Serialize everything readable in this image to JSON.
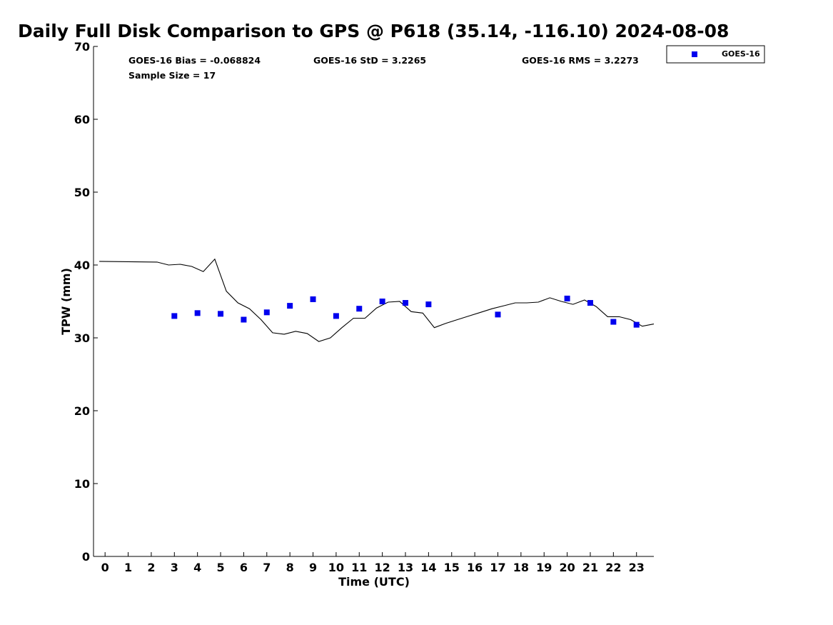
{
  "chart_data": {
    "type": "scatter",
    "title": "Daily Full Disk Comparison to GPS @ P618 (35.14, -116.10) 2024-08-08",
    "xlabel": "Time (UTC)",
    "ylabel": "TPW (mm)",
    "xlim": [
      -0.5,
      23.75
    ],
    "ylim": [
      0,
      70
    ],
    "xticks": [
      0,
      1,
      2,
      3,
      4,
      5,
      6,
      7,
      8,
      9,
      10,
      11,
      12,
      13,
      14,
      15,
      16,
      17,
      18,
      19,
      20,
      21,
      22,
      23
    ],
    "yticks": [
      0,
      10,
      20,
      30,
      40,
      50,
      60,
      70
    ],
    "grid": false,
    "legend": {
      "placement": "top-right, outside plot",
      "entries": [
        "GOES-16"
      ]
    },
    "stats": {
      "bias": "GOES-16 Bias = -0.068824",
      "std": "GOES-16 StD = 3.2265",
      "rms": "GOES-16 RMS = 3.2273",
      "sample": "Sample Size = 17"
    },
    "series": [
      {
        "name": "GOES-16",
        "kind": "scatter",
        "marker": "square",
        "color": "#0000ee",
        "x": [
          3,
          4,
          5,
          6,
          7,
          8,
          9,
          10,
          11,
          12,
          13,
          14,
          17,
          20,
          21,
          22,
          23
        ],
        "y": [
          33.0,
          33.4,
          33.3,
          32.5,
          33.5,
          34.4,
          35.3,
          33.0,
          34.0,
          35.0,
          34.8,
          34.6,
          33.2,
          35.4,
          34.8,
          32.2,
          31.8
        ]
      },
      {
        "kind": "line",
        "color": "#000000",
        "x": [
          -0.25,
          2.25,
          2.75,
          3.25,
          3.75,
          4.25,
          4.75,
          5.25,
          5.75,
          6.25,
          6.75,
          7.25,
          7.75,
          8.25,
          8.75,
          9.25,
          9.75,
          10.25,
          10.75,
          11.25,
          11.75,
          12.25,
          12.75,
          13.25,
          13.75,
          14.25,
          14.75,
          15.25,
          15.75,
          16.25,
          16.75,
          17.25,
          17.75,
          18.25,
          18.75,
          19.25,
          19.75,
          20.25,
          20.75,
          21.25,
          21.75,
          22.25,
          22.75,
          23.25,
          23.75
        ],
        "y": [
          40.5,
          40.4,
          40.0,
          40.1,
          39.8,
          39.1,
          40.8,
          36.4,
          34.8,
          34.0,
          32.5,
          30.7,
          30.5,
          30.9,
          30.6,
          29.5,
          30.0,
          31.4,
          32.7,
          32.7,
          34.1,
          34.9,
          35.0,
          33.6,
          33.4,
          31.4,
          32.0,
          32.5,
          33.0,
          33.5,
          34.0,
          34.4,
          34.8,
          34.8,
          34.9,
          35.5,
          35.0,
          34.6,
          35.2,
          34.3,
          32.9,
          32.9,
          32.5,
          31.6,
          31.9
        ]
      }
    ]
  }
}
